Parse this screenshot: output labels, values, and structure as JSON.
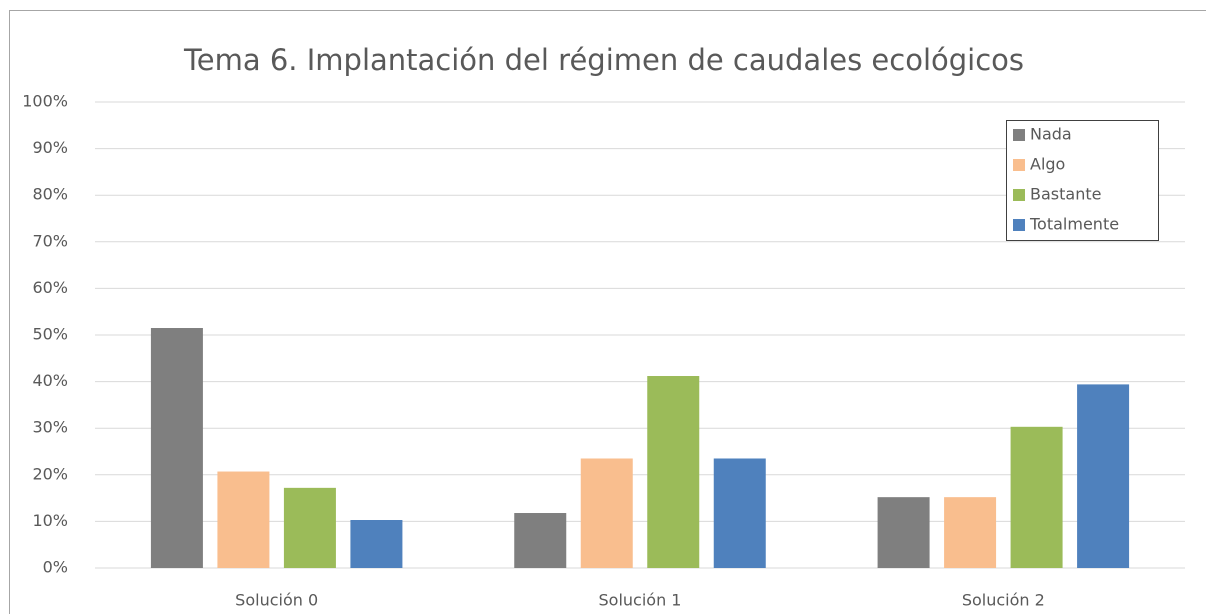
{
  "chart_data": {
    "type": "bar",
    "title": "Tema 6. Implantación del régimen de caudales ecológicos",
    "categories": [
      "Solución 0",
      "Solución 1",
      "Solución 2"
    ],
    "series": [
      {
        "name": "Nada",
        "color": "#7f7f7f",
        "values": [
          51.5,
          11.8,
          15.2
        ]
      },
      {
        "name": "Algo",
        "color": "#f9be8e",
        "values": [
          20.7,
          23.5,
          15.2
        ]
      },
      {
        "name": "Bastante",
        "color": "#9bbb59",
        "values": [
          17.2,
          41.2,
          30.3
        ]
      },
      {
        "name": "Totalmente",
        "color": "#4f81bd",
        "values": [
          10.3,
          23.5,
          39.4
        ]
      }
    ],
    "ylim": [
      0,
      100
    ],
    "yticks": [
      {
        "value": 0,
        "label": "0%"
      },
      {
        "value": 10,
        "label": "10%"
      },
      {
        "value": 20,
        "label": "20%"
      },
      {
        "value": 30,
        "label": "30%"
      },
      {
        "value": 40,
        "label": "40%"
      },
      {
        "value": 50,
        "label": "50%"
      },
      {
        "value": 60,
        "label": "60%"
      },
      {
        "value": 70,
        "label": "70%"
      },
      {
        "value": 80,
        "label": "80%"
      },
      {
        "value": 90,
        "label": "90%"
      },
      {
        "value": 100,
        "label": "100%"
      }
    ],
    "grid": true,
    "legend": "top-right"
  }
}
